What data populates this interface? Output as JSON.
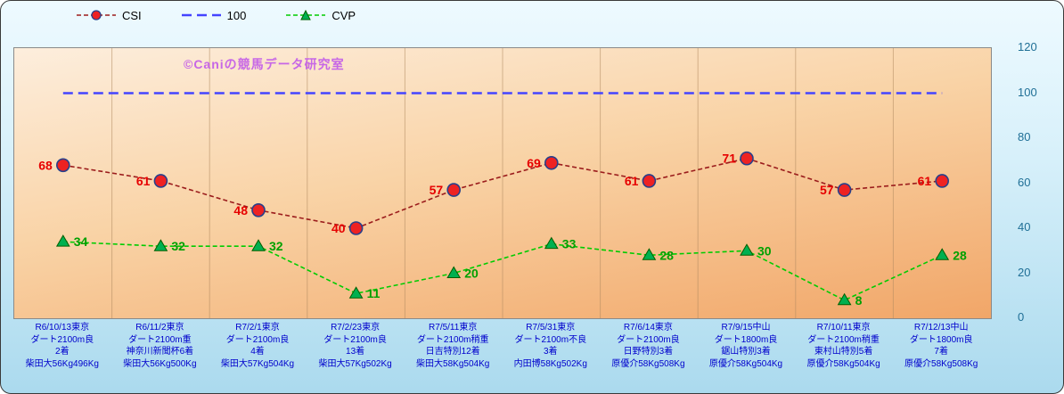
{
  "watermark": "©Caniの競馬データ研究室",
  "legend": {
    "items": [
      {
        "label": "CSI"
      },
      {
        "label": "100"
      },
      {
        "label": "CVP"
      }
    ]
  },
  "colors": {
    "grid": "#b08a60",
    "x_label": "#0000cc",
    "y_label": "#1f6f96",
    "watermark": "#c767e6",
    "outer_background_top": "#eefaff",
    "outer_background_bottom": "#abdaee",
    "plot_background_top": "#fdeedd",
    "plot_background_bottom": "#f1a668"
  },
  "chart_data": {
    "type": "line",
    "title": "",
    "xlabel": "",
    "ylabel": "",
    "ylim": [
      0,
      120
    ],
    "yticks": [
      0,
      20,
      40,
      60,
      80,
      100,
      120
    ],
    "grid": "vertical",
    "legend_position": "top",
    "categories": [
      [
        "R6/10/13東京",
        "ダート2100m良",
        "2着",
        "柴田大56Kg496Kg"
      ],
      [
        "R6/11/2東京",
        "ダート2100m重",
        "神奈川新聞杯6着",
        "柴田大56Kg500Kg"
      ],
      [
        "R7/2/1東京",
        "ダート2100m良",
        "4着",
        "柴田大57Kg504Kg"
      ],
      [
        "R7/2/23東京",
        "ダート2100m良",
        "13着",
        "柴田大57Kg502Kg"
      ],
      [
        "R7/5/11東京",
        "ダート2100m稍重",
        "日吉特別12着",
        "柴田大58Kg504Kg"
      ],
      [
        "R7/5/31東京",
        "ダート2100m不良",
        "3着",
        "内田博58Kg502Kg"
      ],
      [
        "R7/6/14東京",
        "ダート2100m良",
        "日野特別3着",
        "原優介58Kg508Kg"
      ],
      [
        "R7/9/15中山",
        "ダート1800m良",
        "鋸山特別3着",
        "原優介58Kg504Kg"
      ],
      [
        "R7/10/11東京",
        "ダート2100m稍重",
        "東村山特別5着",
        "原優介58Kg504Kg"
      ],
      [
        "R7/12/13中山",
        "ダート1800m良",
        "7着",
        "原優介58Kg508Kg"
      ]
    ],
    "series": [
      {
        "name": "CSI",
        "values": [
          68,
          61,
          48,
          40,
          57,
          69,
          61,
          71,
          57,
          61
        ],
        "line_color": "#9b1c1c",
        "line_width": 1.6,
        "dash": "5,3",
        "marker": "circle",
        "marker_fill": "#ee2222",
        "marker_stroke": "#27408b",
        "label_color": "#e60000",
        "label_side": "left"
      },
      {
        "name": "100",
        "values": [
          100,
          100,
          100,
          100,
          100,
          100,
          100,
          100,
          100,
          100
        ],
        "line_color": "#4444ff",
        "line_width": 2.4,
        "dash": "11,6",
        "marker": "none",
        "label_side": "none"
      },
      {
        "name": "CVP",
        "values": [
          34,
          32,
          32,
          11,
          20,
          33,
          28,
          30,
          8,
          28
        ],
        "line_color": "#00cc00",
        "line_width": 1.6,
        "dash": "5,3",
        "marker": "triangle",
        "marker_fill": "#00b050",
        "marker_stroke": "#005f00",
        "label_color": "#00a000",
        "label_side": "right"
      }
    ]
  }
}
